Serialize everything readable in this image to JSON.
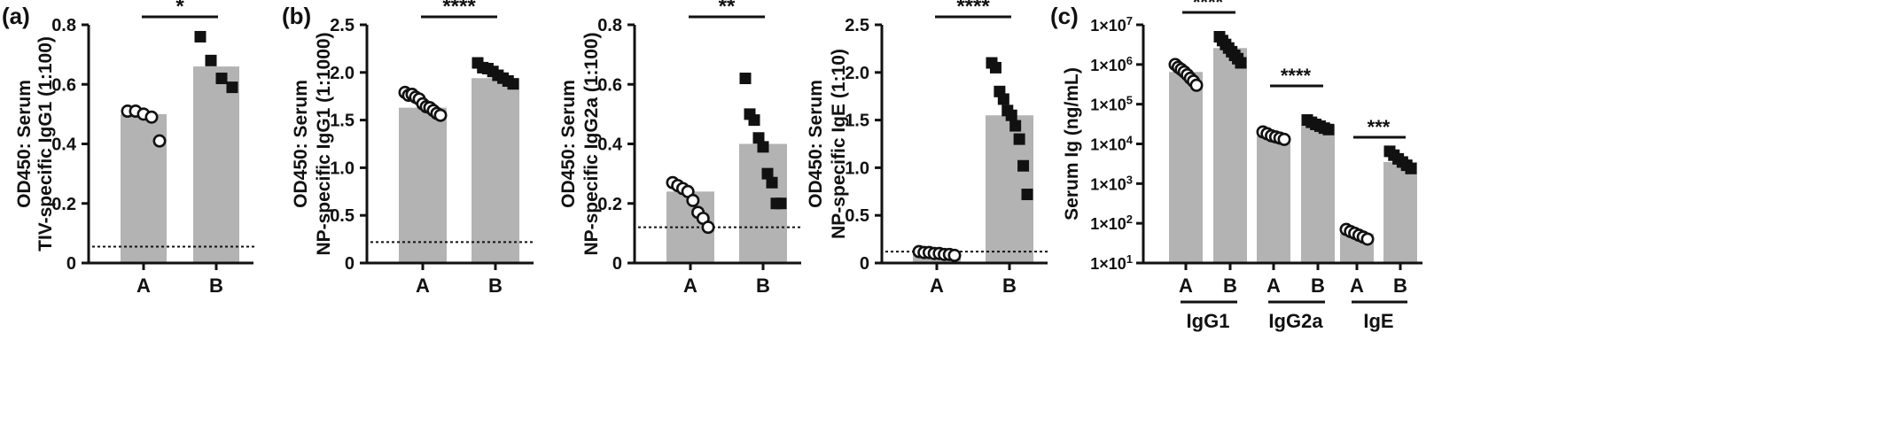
{
  "panel_labels": [
    "(a)",
    "(b)",
    "(c)"
  ],
  "colors": {
    "bar": "#b3b3b3",
    "ink": "#111111",
    "open_marker_fill": "#ffffff"
  },
  "chart_data": [
    {
      "type": "bar",
      "panel": "(a)",
      "categories": [
        "A",
        "B"
      ],
      "values": [
        0.5,
        0.66
      ],
      "points": [
        [
          0.51,
          0.51,
          0.5,
          0.49,
          0.41
        ],
        [
          0.76,
          0.68,
          0.62,
          0.59
        ]
      ],
      "marker_style": [
        "open-circle",
        "filled-square"
      ],
      "ylabel": [
        "OD450: Serum",
        "TIV-specific IgG1 (1:100)"
      ],
      "ylim": [
        0,
        0.8
      ],
      "yticks": [
        "0",
        "0.2",
        "0.4",
        "0.6",
        "0.8"
      ],
      "cutoff_line": 0.055,
      "significance": "*"
    },
    {
      "type": "bar",
      "panel": "(b)",
      "categories": [
        "A",
        "B"
      ],
      "values": [
        1.63,
        1.94
      ],
      "points": [
        [
          1.79,
          1.76,
          1.77,
          1.74,
          1.72,
          1.67,
          1.64,
          1.63,
          1.6,
          1.57,
          1.55
        ],
        [
          2.1,
          2.05,
          2.04,
          2.01,
          1.97,
          1.94,
          1.91,
          1.88
        ]
      ],
      "marker_style": [
        "open-circle",
        "filled-square"
      ],
      "ylabel": [
        "OD450: Serum",
        "NP-specific IgG1 (1:1000)"
      ],
      "ylim": [
        0,
        2.5
      ],
      "yticks": [
        "0",
        "0.5",
        "1.0",
        "1.5",
        "2.0",
        "2.5"
      ],
      "cutoff_line": 0.22,
      "significance": "****"
    },
    {
      "type": "bar",
      "panel": "(b)",
      "categories": [
        "A",
        "B"
      ],
      "values": [
        0.24,
        0.4
      ],
      "points": [
        [
          0.27,
          0.26,
          0.25,
          0.24,
          0.21,
          0.17,
          0.15,
          0.12
        ],
        [
          0.62,
          0.5,
          0.48,
          0.42,
          0.39,
          0.3,
          0.27,
          0.2,
          0.2
        ]
      ],
      "marker_style": [
        "open-circle",
        "filled-square"
      ],
      "ylabel": [
        "OD450: Serum",
        "NP-specific IgG2a (1:100)"
      ],
      "ylim": [
        0,
        0.8
      ],
      "yticks": [
        "0",
        "0.2",
        "0.4",
        "0.6",
        "0.8"
      ],
      "cutoff_line": 0.12,
      "significance": "**"
    },
    {
      "type": "bar",
      "panel": "(b)",
      "categories": [
        "A",
        "B"
      ],
      "values": [
        0.1,
        1.55
      ],
      "points": [
        [
          0.12,
          0.11,
          0.11,
          0.1,
          0.1,
          0.09,
          0.09,
          0.08
        ],
        [
          2.1,
          2.05,
          1.8,
          1.72,
          1.6,
          1.55,
          1.44,
          1.3,
          1.02,
          0.72
        ]
      ],
      "marker_style": [
        "open-circle",
        "filled-square"
      ],
      "ylabel": [
        "OD450: Serum",
        "NP-specific IgE (1:10)"
      ],
      "ylim": [
        0,
        2.5
      ],
      "yticks": [
        "0",
        "0.5",
        "1.0",
        "1.5",
        "2.0",
        "2.5"
      ],
      "cutoff_line": 0.12,
      "significance": "****"
    },
    {
      "type": "bar",
      "panel": "(c)",
      "scale": "log",
      "groups": [
        "IgG1",
        "IgG2a",
        "IgE"
      ],
      "categories": [
        "A",
        "B",
        "A",
        "B",
        "A",
        "B"
      ],
      "values": [
        650000,
        2600000,
        16000,
        30000,
        55,
        3500
      ],
      "points": [
        [
          1000000,
          850000,
          750000,
          650000,
          550000,
          450000,
          380000,
          300000
        ],
        [
          5000000,
          4000000,
          3200000,
          2600000,
          2100000,
          1700000,
          1400000,
          1100000
        ],
        [
          20000,
          18000,
          16000,
          15000,
          14000,
          13000
        ],
        [
          40000,
          35000,
          31000,
          28000,
          25000,
          23000
        ],
        [
          70,
          62,
          56,
          50,
          45,
          40
        ],
        [
          6500,
          5200,
          4200,
          3500,
          2900,
          2400
        ]
      ],
      "marker_style": [
        "open-circle",
        "filled-square",
        "open-circle",
        "filled-square",
        "open-circle",
        "filled-square"
      ],
      "ylabel": [
        "Serum Ig (ng/mL)"
      ],
      "ylim": [
        10,
        10000000
      ],
      "yticks": [
        "1×10^1",
        "1×10^2",
        "1×10^3",
        "1×10^4",
        "1×10^5",
        "1×10^6",
        "1×10^7"
      ],
      "significance": [
        "****",
        "****",
        "***"
      ]
    }
  ]
}
